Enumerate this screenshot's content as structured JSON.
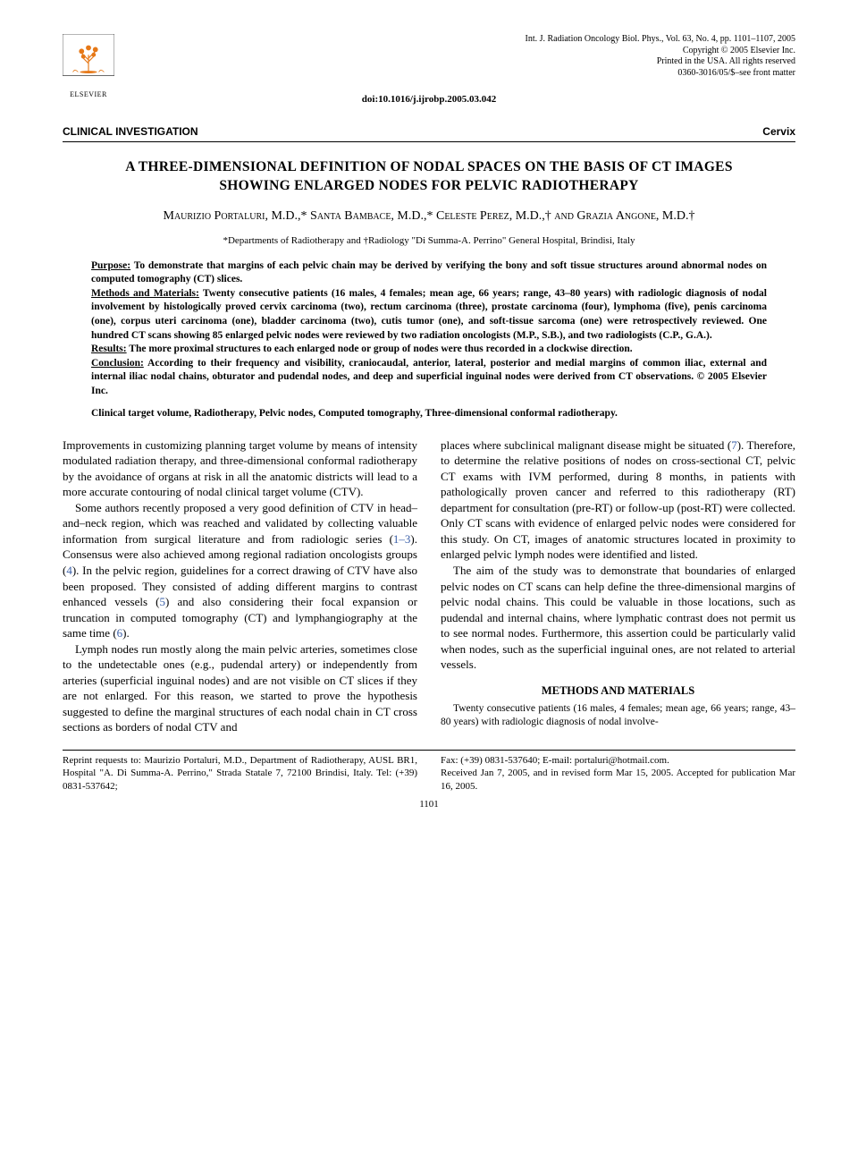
{
  "header": {
    "publisher_label": "ELSEVIER",
    "citation_lines": [
      "Int. J. Radiation Oncology Biol. Phys., Vol. 63, No. 4, pp. 1101–1107, 2005",
      "Copyright © 2005 Elsevier Inc.",
      "Printed in the USA. All rights reserved",
      "0360-3016/05/$–see front matter"
    ],
    "doi": "doi:10.1016/j.ijrobp.2005.03.042"
  },
  "labels": {
    "section": "CLINICAL INVESTIGATION",
    "category": "Cervix"
  },
  "title": "A THREE-DIMENSIONAL DEFINITION OF NODAL SPACES ON THE BASIS OF CT IMAGES SHOWING ENLARGED NODES FOR PELVIC RADIOTHERAPY",
  "authors": "Maurizio Portaluri, M.D.,* Santa Bambace, M.D.,* Celeste Perez, M.D.,† and Grazia Angone, M.D.†",
  "affiliations": "*Departments of Radiotherapy and †Radiology \"Di Summa-A. Perrino\" General Hospital, Brindisi, Italy",
  "abstract": {
    "purpose": {
      "label": "Purpose:",
      "text": " To demonstrate that margins of each pelvic chain may be derived by verifying the bony and soft tissue structures around abnormal nodes on computed tomography (CT) slices."
    },
    "methods": {
      "label": "Methods and Materials:",
      "text": " Twenty consecutive patients (16 males, 4 females; mean age, 66 years; range, 43–80 years) with radiologic diagnosis of nodal involvement by histologically proved cervix carcinoma (two), rectum carcinoma (three), prostate carcinoma (four), lymphoma (five), penis carcinoma (one), corpus uteri carcinoma (one), bladder carcinoma (two), cutis tumor (one), and soft-tissue sarcoma (one) were retrospectively reviewed. One hundred CT scans showing 85 enlarged pelvic nodes were reviewed by two radiation oncologists (M.P., S.B.), and two radiologists (C.P., G.A.)."
    },
    "results": {
      "label": "Results:",
      "text": " The more proximal structures to each enlarged node or group of nodes were thus recorded in a clockwise direction."
    },
    "conclusion": {
      "label": "Conclusion:",
      "text": " According to their frequency and visibility, craniocaudal, anterior, lateral, posterior and medial margins of common iliac, external and internal iliac nodal chains, obturator and pudendal nodes, and deep and superficial inguinal nodes were derived from CT observations.  © 2005 Elsevier Inc."
    }
  },
  "keywords": "Clinical target volume, Radiotherapy, Pelvic nodes, Computed tomography, Three-dimensional conformal radiotherapy.",
  "body": {
    "left": [
      "Improvements in customizing planning target volume by means of intensity modulated radiation therapy, and three-dimensional conformal radiotherapy by the avoidance of organs at risk in all the anatomic districts will lead to a more accurate contouring of nodal clinical target volume (CTV).",
      "Some authors recently proposed a very good definition of CTV in head–and–neck region, which was reached and validated by collecting valuable information from surgical literature and from radiologic series (1–3). Consensus were also achieved among regional radiation oncologists groups (4). In the pelvic region, guidelines for a correct drawing of CTV have also been proposed. They consisted of adding different margins to contrast enhanced vessels (5) and also considering their focal expansion or truncation in computed tomography (CT) and lymphangiography at the same time (6).",
      "Lymph nodes run mostly along the main pelvic arteries, sometimes close to the undetectable ones (e.g., pudendal artery) or independently from arteries (superficial inguinal nodes) and are not visible on CT slices if they are not enlarged. For this reason, we started to prove the hypothesis suggested to define the marginal structures of each nodal chain in CT cross sections as borders of nodal CTV and"
    ],
    "right": [
      "places where subclinical malignant disease might be situated (7). Therefore, to determine the relative positions of nodes on cross-sectional CT, pelvic CT exams with IVM performed, during 8 months, in patients with pathologically proven cancer and referred to this radiotherapy (RT) department for consultation (pre-RT) or follow-up (post-RT) were collected. Only CT scans with evidence of enlarged pelvic nodes were considered for this study. On CT, images of anatomic structures located in proximity to enlarged pelvic lymph nodes were identified and listed.",
      "The aim of the study was to demonstrate that boundaries of enlarged pelvic nodes on CT scans can help define the three-dimensional margins of pelvic nodal chains. This could be valuable in those locations, such as pudendal and internal chains, where lymphatic contrast does not permit us to see normal nodes. Furthermore, this assertion could be particularly valid when nodes, such as the superficial inguinal ones, are not related to arterial vessels."
    ],
    "methods_heading": "METHODS AND MATERIALS",
    "methods_para": "Twenty consecutive patients (16 males, 4 females; mean age, 66 years; range, 43–80 years) with radiologic diagnosis of nodal involve-"
  },
  "footnote": {
    "left": "Reprint requests to: Maurizio Portaluri, M.D., Department of Radiotherapy, AUSL BR1, Hospital \"A. Di Summa-A. Perrino,\" Strada Statale 7, 72100 Brindisi, Italy. Tel: (+39) 0831-537642;",
    "right": "Fax: (+39) 0831-537640; E-mail: portaluri@hotmail.com.\nReceived Jan 7, 2005, and in revised form Mar 15, 2005. Accepted for publication Mar 16, 2005."
  },
  "page_number": "1101",
  "colors": {
    "link": "#3a5fa8",
    "text": "#000000",
    "background": "#ffffff",
    "logo": "#e67817"
  }
}
